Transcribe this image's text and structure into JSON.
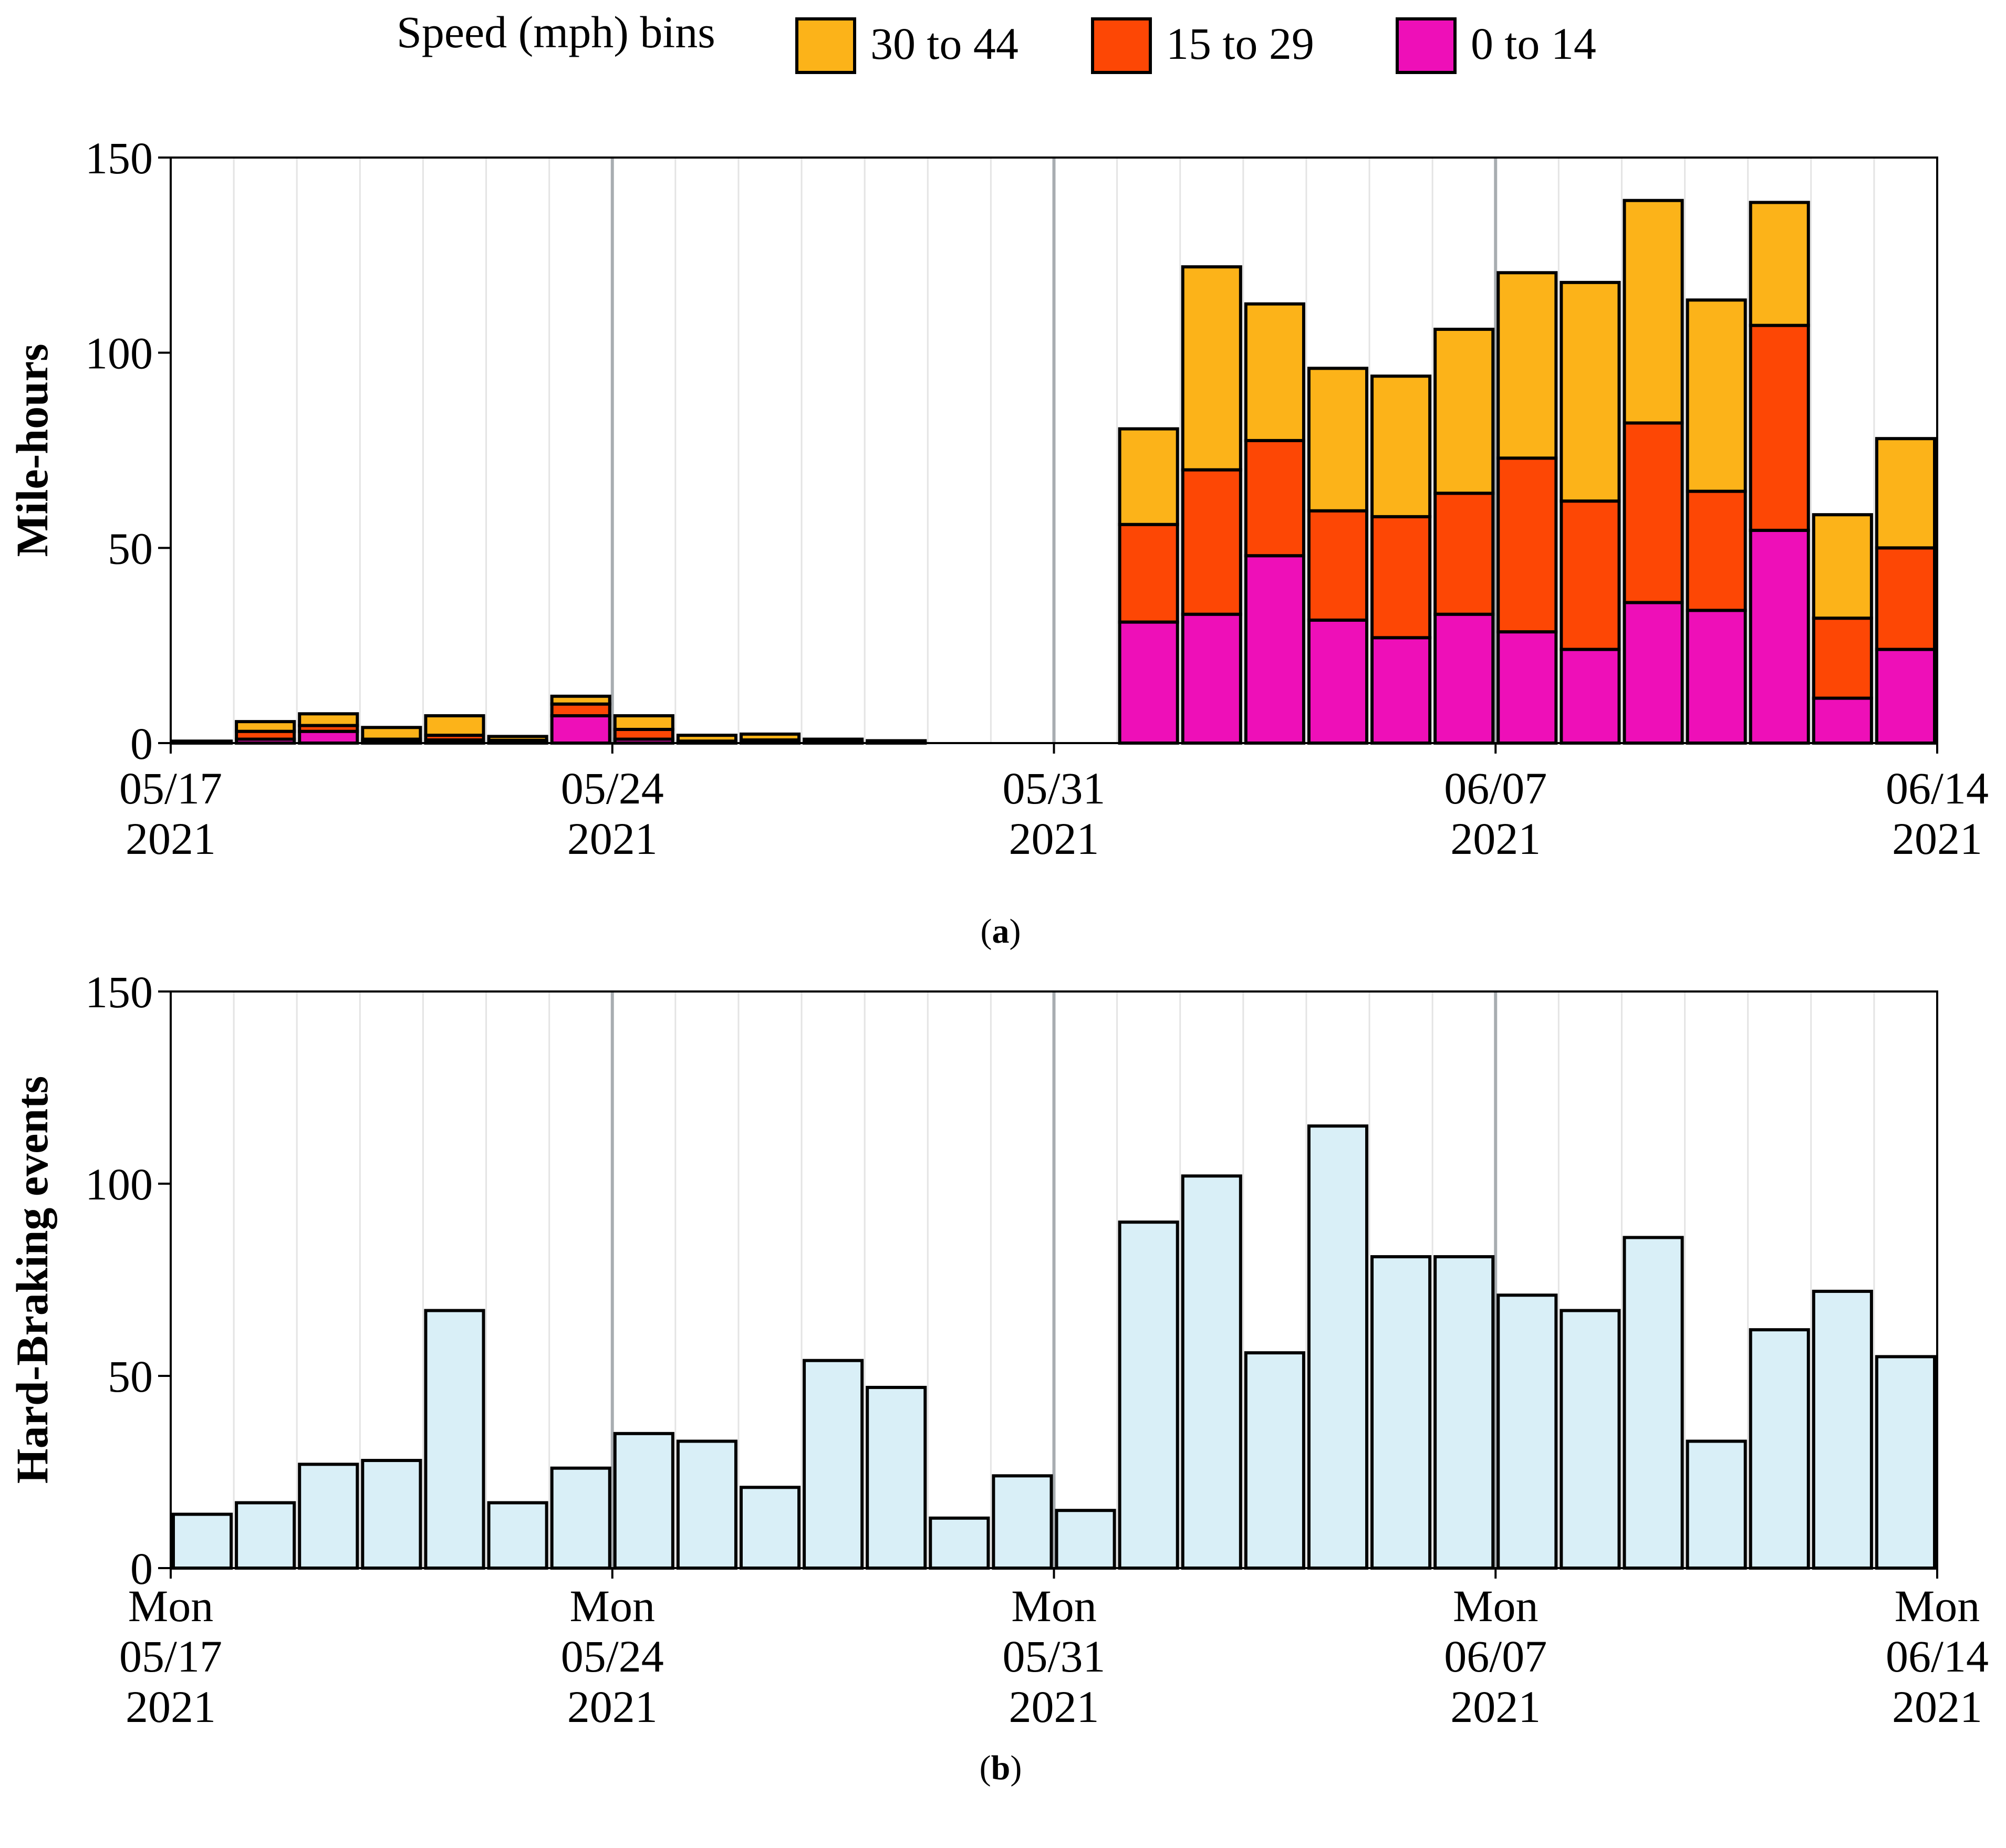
{
  "legend": {
    "title": "Speed (mph) bins",
    "entries": [
      {
        "name": "30 to 44",
        "color": "#fcb319"
      },
      {
        "name": "15 to 29",
        "color": "#fd4705"
      },
      {
        "name": "0 to 14",
        "color": "#ee0fb8"
      }
    ]
  },
  "chart_data": [
    {
      "type": "bar",
      "stacked": true,
      "panel_label": "a",
      "ylabel": "Mile-hours",
      "ylim": [
        0,
        150
      ],
      "yticks": [
        0,
        50,
        100,
        150
      ],
      "x": [
        "2021-05-17",
        "2021-05-18",
        "2021-05-19",
        "2021-05-20",
        "2021-05-21",
        "2021-05-22",
        "2021-05-23",
        "2021-05-24",
        "2021-05-25",
        "2021-05-26",
        "2021-05-27",
        "2021-05-28",
        "2021-05-29",
        "2021-05-30",
        "2021-05-31",
        "2021-06-01",
        "2021-06-02",
        "2021-06-03",
        "2021-06-04",
        "2021-06-05",
        "2021-06-06",
        "2021-06-07",
        "2021-06-08",
        "2021-06-09",
        "2021-06-10",
        "2021-06-11",
        "2021-06-12",
        "2021-06-13"
      ],
      "xtick_labels": [
        {
          "date": "2021-05-17",
          "lines": [
            "05/17",
            "2021"
          ]
        },
        {
          "date": "2021-05-24",
          "lines": [
            "05/24",
            "2021"
          ]
        },
        {
          "date": "2021-05-31",
          "lines": [
            "05/31",
            "2021"
          ]
        },
        {
          "date": "2021-06-07",
          "lines": [
            "06/07",
            "2021"
          ]
        },
        {
          "date": "2021-06-14",
          "lines": [
            "06/14",
            "2021"
          ]
        }
      ],
      "series": [
        {
          "name": "0 to 14",
          "color": "#ee0fb8",
          "values": [
            0.3,
            1,
            3,
            0.5,
            0.8,
            0.3,
            7,
            1,
            0.2,
            0.3,
            0.1,
            0.1,
            0,
            0,
            0,
            31,
            33,
            48,
            31.5,
            27,
            33,
            28.5,
            24,
            36,
            34,
            54.5,
            11.5,
            24
          ]
        },
        {
          "name": "15 to 29",
          "color": "#fd4705",
          "values": [
            0.2,
            2,
            1.5,
            0.5,
            1.2,
            0.4,
            3,
            2.5,
            0.3,
            0.5,
            0.2,
            0.1,
            0,
            0,
            0,
            25,
            37,
            29.5,
            28,
            31,
            31,
            44.5,
            38,
            46,
            30.5,
            52.5,
            20.5,
            26
          ]
        },
        {
          "name": "30 to 44",
          "color": "#fcb319",
          "values": [
            0,
            2.5,
            3,
            3,
            5,
            1,
            2,
            3.5,
            1.5,
            1.5,
            0.7,
            0.4,
            0,
            0,
            0,
            24.5,
            52,
            35,
            36.5,
            36,
            42,
            47.5,
            56,
            57,
            49,
            31.5,
            26.5,
            28
          ]
        }
      ]
    },
    {
      "type": "bar",
      "panel_label": "b",
      "ylabel": "Hard-Braking events",
      "ylim": [
        0,
        150
      ],
      "yticks": [
        0,
        50,
        100,
        150
      ],
      "color": "#d9eff7",
      "x": [
        "2021-05-17",
        "2021-05-18",
        "2021-05-19",
        "2021-05-20",
        "2021-05-21",
        "2021-05-22",
        "2021-05-23",
        "2021-05-24",
        "2021-05-25",
        "2021-05-26",
        "2021-05-27",
        "2021-05-28",
        "2021-05-29",
        "2021-05-30",
        "2021-05-31",
        "2021-06-01",
        "2021-06-02",
        "2021-06-03",
        "2021-06-04",
        "2021-06-05",
        "2021-06-06",
        "2021-06-07",
        "2021-06-08",
        "2021-06-09",
        "2021-06-10",
        "2021-06-11",
        "2021-06-12",
        "2021-06-13"
      ],
      "values": [
        14,
        17,
        27,
        28,
        67,
        17,
        26,
        35,
        33,
        21,
        54,
        47,
        13,
        24,
        15,
        90,
        102,
        56,
        115,
        81,
        81,
        71,
        67,
        86,
        33,
        62,
        72,
        55
      ],
      "xtick_labels": [
        {
          "date": "2021-05-17",
          "lines": [
            "Mon",
            "05/17",
            "2021"
          ]
        },
        {
          "date": "2021-05-24",
          "lines": [
            "Mon",
            "05/24",
            "2021"
          ]
        },
        {
          "date": "2021-05-31",
          "lines": [
            "Mon",
            "05/31",
            "2021"
          ]
        },
        {
          "date": "2021-06-07",
          "lines": [
            "Mon",
            "06/07",
            "2021"
          ]
        },
        {
          "date": "2021-06-14",
          "lines": [
            "Mon",
            "06/14",
            "2021"
          ]
        }
      ]
    }
  ]
}
